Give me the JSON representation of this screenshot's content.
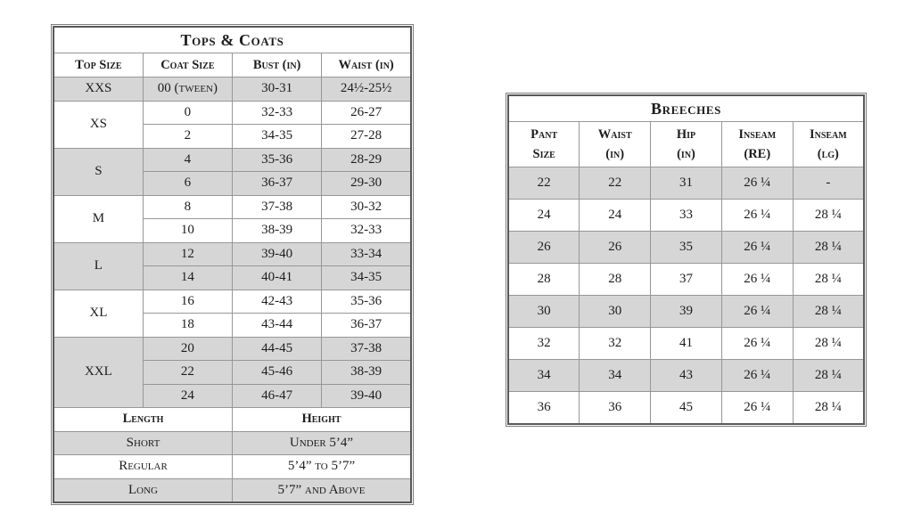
{
  "tops_coats": {
    "title": "Tops & Coats",
    "columns": [
      "Top Size",
      "Coat Size",
      "Bust (in)",
      "Waist (in)"
    ],
    "groups": [
      {
        "size": "XXS",
        "rows": [
          [
            "00 (tween)",
            "30-31",
            "24½-25½"
          ]
        ]
      },
      {
        "size": "XS",
        "rows": [
          [
            "0",
            "32-33",
            "26-27"
          ],
          [
            "2",
            "34-35",
            "27-28"
          ]
        ]
      },
      {
        "size": "S",
        "rows": [
          [
            "4",
            "35-36",
            "28-29"
          ],
          [
            "6",
            "36-37",
            "29-30"
          ]
        ]
      },
      {
        "size": "M",
        "rows": [
          [
            "8",
            "37-38",
            "30-32"
          ],
          [
            "10",
            "38-39",
            "32-33"
          ]
        ]
      },
      {
        "size": "L",
        "rows": [
          [
            "12",
            "39-40",
            "33-34"
          ],
          [
            "14",
            "40-41",
            "34-35"
          ]
        ]
      },
      {
        "size": "XL",
        "rows": [
          [
            "16",
            "42-43",
            "35-36"
          ],
          [
            "18",
            "43-44",
            "36-37"
          ]
        ]
      },
      {
        "size": "XXL",
        "rows": [
          [
            "20",
            "44-45",
            "37-38"
          ],
          [
            "22",
            "45-46",
            "38-39"
          ],
          [
            "24",
            "46-47",
            "39-40"
          ]
        ]
      }
    ],
    "length_section": {
      "length_header": "Length",
      "height_header": "Height",
      "rows": [
        {
          "length": "Short",
          "height": "Under 5’4”"
        },
        {
          "length": "Regular",
          "height": "5’4” to 5’7”"
        },
        {
          "length": "Long",
          "height": "5’7” and Above"
        }
      ]
    }
  },
  "breeches": {
    "title": "Breeches",
    "columns": [
      {
        "line1": "Pant",
        "line2": "Size"
      },
      {
        "line1": "Waist",
        "line2": "(in)"
      },
      {
        "line1": "Hip",
        "line2": "(in)"
      },
      {
        "line1": "Inseam",
        "line2": "(RE)"
      },
      {
        "line1": "Inseam",
        "line2": "(lg)"
      }
    ],
    "rows": [
      [
        "22",
        "22",
        "31",
        "26 ¼",
        "-"
      ],
      [
        "24",
        "24",
        "33",
        "26 ¼",
        "28 ¼"
      ],
      [
        "26",
        "26",
        "35",
        "26 ¼",
        "28 ¼"
      ],
      [
        "28",
        "28",
        "37",
        "26 ¼",
        "28 ¼"
      ],
      [
        "30",
        "30",
        "39",
        "26 ¼",
        "28 ¼"
      ],
      [
        "32",
        "32",
        "41",
        "26 ¼",
        "28 ¼"
      ],
      [
        "34",
        "34",
        "43",
        "26 ¼",
        "28 ¼"
      ],
      [
        "36",
        "36",
        "45",
        "26 ¼",
        "28 ¼"
      ]
    ]
  },
  "colors": {
    "shaded_row": "#d6d6d6",
    "frame": "#585858",
    "grid": "#979797",
    "text": "#1c1c1c"
  }
}
